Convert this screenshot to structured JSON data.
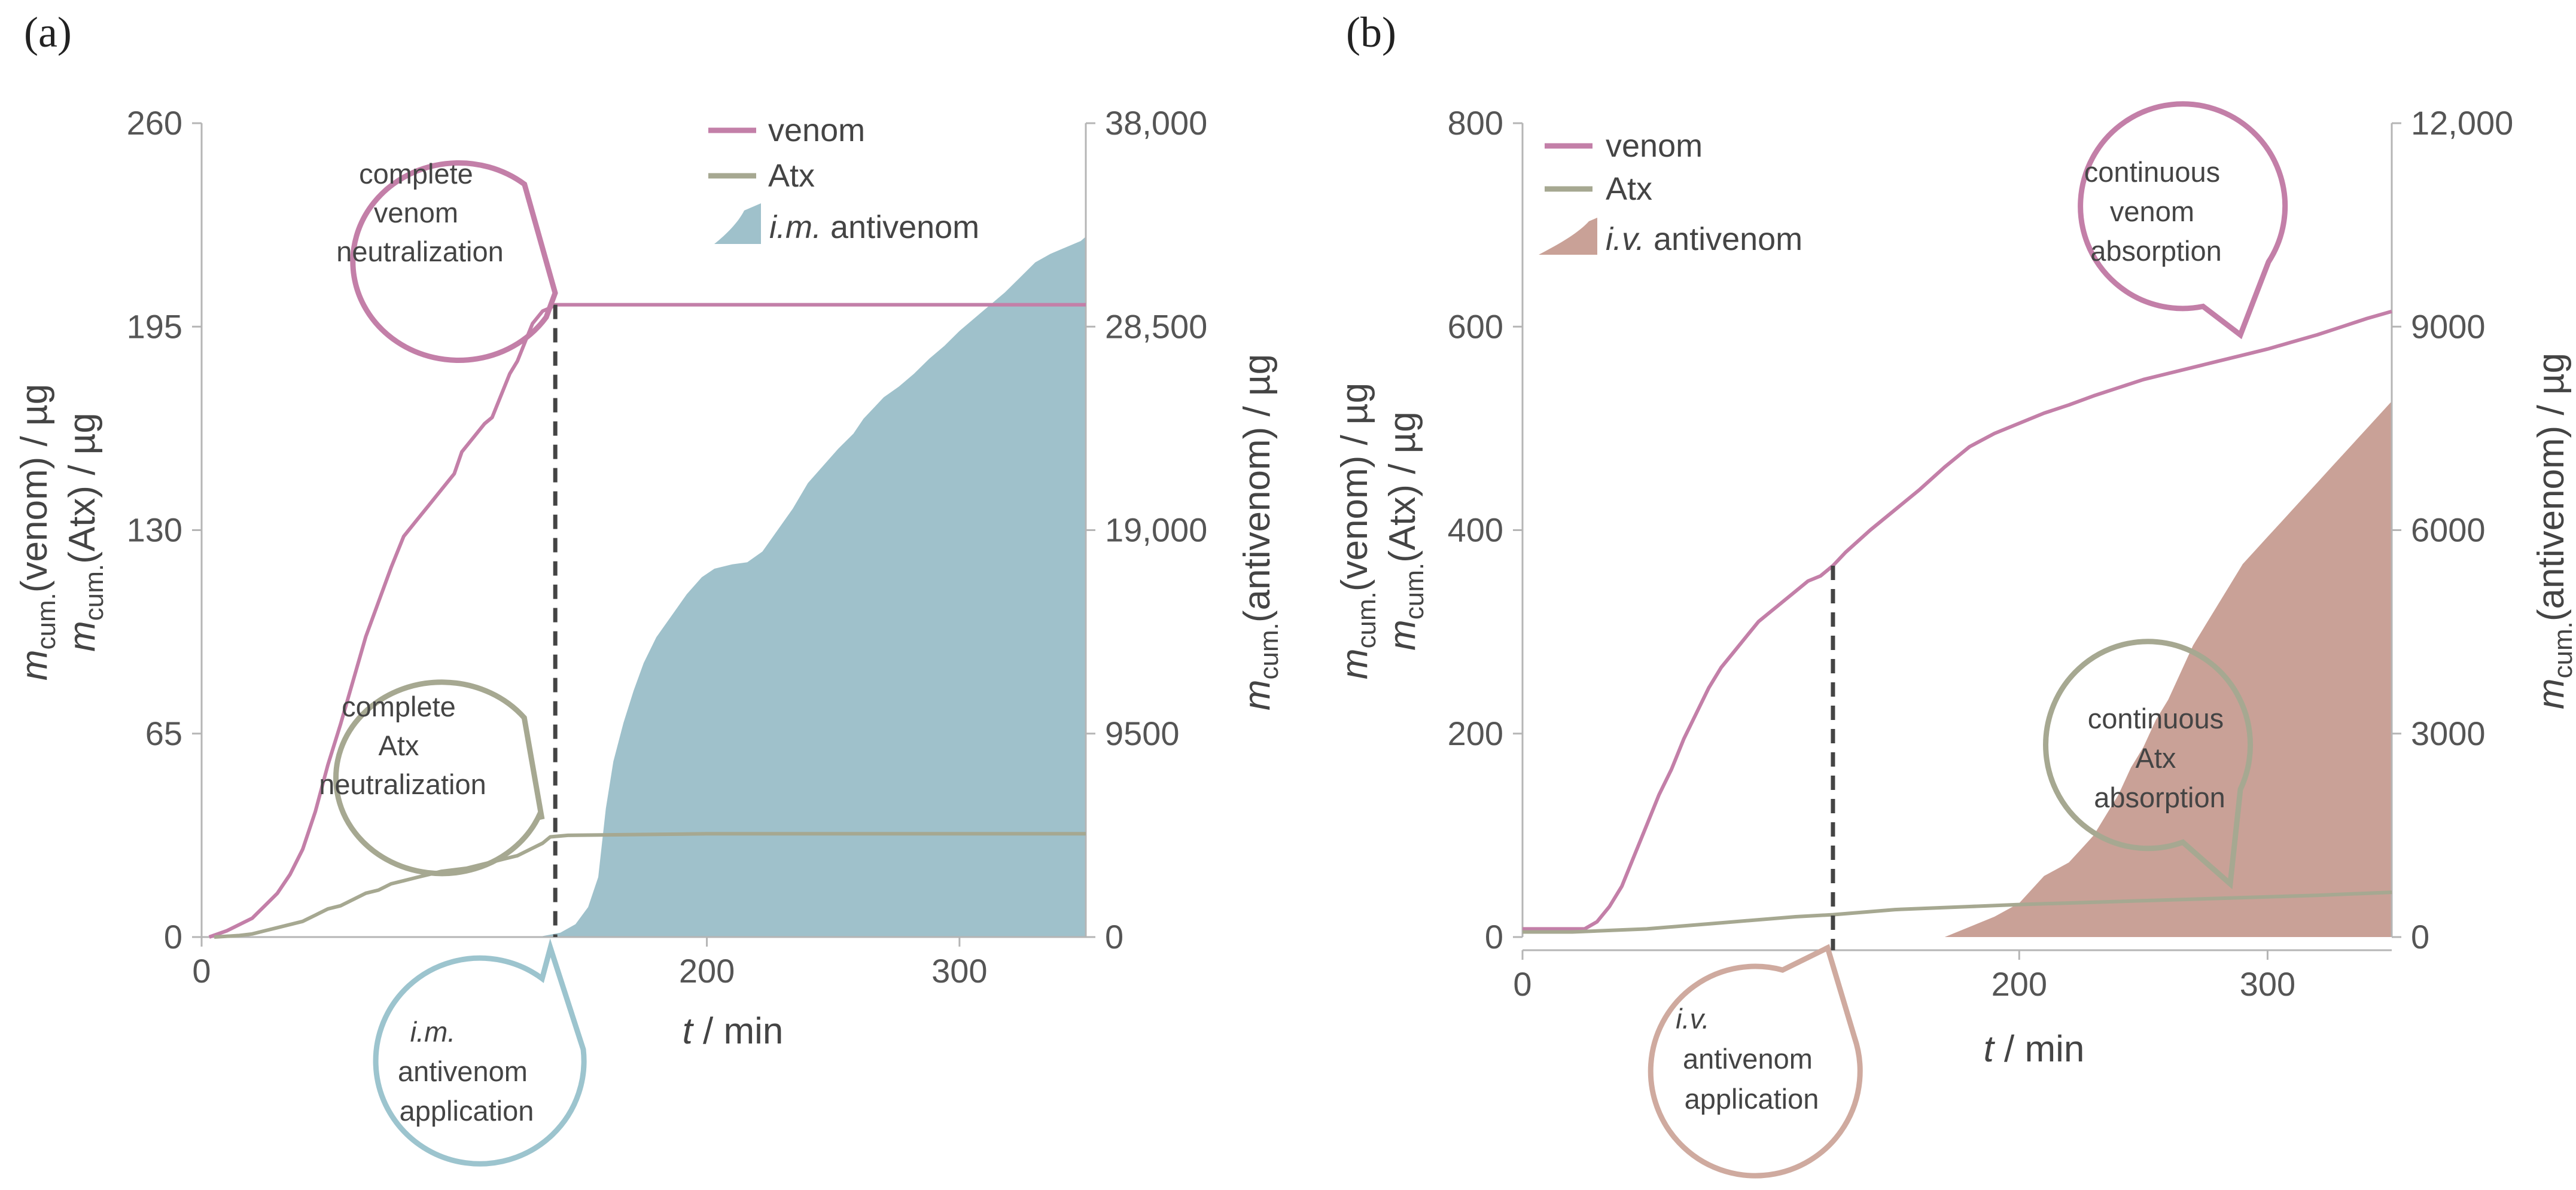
{
  "colors": {
    "venom": "#c37fa8",
    "atx": "#a6a891",
    "im_antivenom": "#9fc1cb",
    "iv_antivenom": "#c9a197",
    "im_callout": "#9cc4ce",
    "iv_callout": "#cfaa9f",
    "axis": "#b5b5b5",
    "dashed": "#444444"
  },
  "chart_data": [
    {
      "panel_label": "(a)",
      "type": "line",
      "xlabel": {
        "italic": "t",
        "rest": " / min"
      },
      "xlim": [
        0,
        350
      ],
      "xticks": [
        {
          "v": 0,
          "label": "0"
        },
        {
          "v": 200,
          "label": "200"
        },
        {
          "v": 300,
          "label": "300"
        }
      ],
      "ylim_left": [
        0,
        260
      ],
      "yticks_left": [
        {
          "v": 0,
          "label": "0"
        },
        {
          "v": 65,
          "label": "65"
        },
        {
          "v": 130,
          "label": "130"
        },
        {
          "v": 195,
          "label": "195"
        },
        {
          "v": 260,
          "label": "260"
        }
      ],
      "ylim_right": [
        0,
        38000
      ],
      "yticks_right": [
        {
          "v": 0,
          "label": "0"
        },
        {
          "v": 9500,
          "label": "9500"
        },
        {
          "v": 19000,
          "label": "19,000"
        },
        {
          "v": 28500,
          "label": "28,500"
        },
        {
          "v": 38000,
          "label": "38,000"
        }
      ],
      "ylabel_left": {
        "line1": {
          "m": "m",
          "sub": "cum.",
          "rest": "(venom) / µg"
        },
        "line2": {
          "m": "m",
          "sub": "cum.",
          "rest": "(Atx) / µg"
        }
      },
      "ylabel_right": {
        "m": "m",
        "sub": "cum.",
        "rest": "(antivenom) / µg"
      },
      "legend": [
        {
          "key": "venom",
          "label": "venom"
        },
        {
          "key": "atx",
          "label": "Atx"
        },
        {
          "key": "antivenom",
          "italic": "i.m.",
          "label": " antivenom"
        }
      ],
      "callouts": [
        {
          "key": "venom",
          "lines": [
            "complete",
            "venom",
            "neutralization"
          ]
        },
        {
          "key": "atx",
          "lines": [
            "complete",
            "Atx",
            "neutralization"
          ]
        },
        {
          "key": "antivenom",
          "lines_italic": [
            "i.m."
          ],
          "lines": [
            "antivenom",
            "application"
          ]
        }
      ],
      "dashed_x": 140,
      "series": [
        {
          "name": "venom",
          "axis": "left",
          "x": [
            3,
            10,
            15,
            20,
            25,
            30,
            35,
            40,
            45,
            50,
            55,
            60,
            65,
            70,
            75,
            80,
            85,
            90,
            95,
            100,
            103,
            108,
            112,
            115,
            118,
            122,
            125,
            128,
            131,
            135,
            138,
            140,
            145,
            200,
            295,
            350
          ],
          "y": [
            0,
            2,
            4,
            6,
            10,
            14,
            20,
            28,
            40,
            55,
            68,
            82,
            96,
            107,
            118,
            128,
            133,
            138,
            143,
            148,
            155,
            160,
            164,
            166,
            172,
            180,
            184,
            190,
            196,
            200,
            201,
            202,
            202,
            202,
            202,
            202
          ]
        },
        {
          "name": "Atx",
          "axis": "left",
          "x": [
            5,
            15,
            20,
            25,
            30,
            35,
            40,
            45,
            50,
            55,
            60,
            65,
            70,
            75,
            80,
            85,
            90,
            95,
            100,
            105,
            110,
            115,
            120,
            125,
            130,
            135,
            138,
            145,
            200,
            350
          ],
          "y": [
            0,
            0.5,
            1,
            2,
            3,
            4,
            5,
            7,
            9,
            10,
            12,
            14,
            15,
            17,
            18,
            19,
            20,
            21,
            21.5,
            22,
            23,
            24,
            25,
            26,
            28,
            30,
            32,
            32.5,
            33,
            33
          ]
        },
        {
          "name": "i.m. antivenom",
          "axis": "right",
          "type": "area",
          "x": [
            133,
            142,
            148,
            153,
            157,
            160,
            163,
            167,
            171,
            175,
            180,
            186,
            192,
            198,
            203,
            210,
            216,
            222,
            228,
            234,
            240,
            246,
            252,
            258,
            262,
            266,
            270,
            276,
            282,
            288,
            294,
            300,
            306,
            312,
            318,
            324,
            330,
            336,
            342,
            348,
            350
          ],
          "y": [
            0,
            200,
            600,
            1400,
            2800,
            6000,
            8200,
            10000,
            11500,
            12800,
            14000,
            15000,
            16000,
            16800,
            17200,
            17400,
            17500,
            18000,
            19000,
            20000,
            21200,
            22000,
            22800,
            23500,
            24200,
            24700,
            25200,
            25700,
            26300,
            27000,
            27600,
            28300,
            28900,
            29500,
            30100,
            30800,
            31500,
            31900,
            32200,
            32500,
            32700
          ]
        }
      ]
    },
    {
      "panel_label": "(b)",
      "type": "line",
      "xlabel": {
        "italic": "t",
        "rest": " / min"
      },
      "xlim": [
        0,
        350
      ],
      "xticks": [
        {
          "v": 0,
          "label": "0"
        },
        {
          "v": 200,
          "label": "200"
        },
        {
          "v": 300,
          "label": "300"
        }
      ],
      "ylim_left": [
        0,
        800
      ],
      "yticks_left": [
        {
          "v": 0,
          "label": "0"
        },
        {
          "v": 200,
          "label": "200"
        },
        {
          "v": 400,
          "label": "400"
        },
        {
          "v": 600,
          "label": "600"
        },
        {
          "v": 800,
          "label": "800"
        }
      ],
      "ylim_right": [
        0,
        12000
      ],
      "yticks_right": [
        {
          "v": 0,
          "label": "0"
        },
        {
          "v": 3000,
          "label": "3000"
        },
        {
          "v": 6000,
          "label": "6000"
        },
        {
          "v": 9000,
          "label": "9000"
        },
        {
          "v": 12000,
          "label": "12,000"
        }
      ],
      "ylabel_left": {
        "line1": {
          "m": "m",
          "sub": "cum.",
          "rest": "(venom) / µg"
        },
        "line2": {
          "m": "m",
          "sub": "cum.",
          "rest": "(Atx) / µg"
        }
      },
      "ylabel_right": {
        "m": "m",
        "sub": "cum.",
        "rest": "(antivenom) / µg"
      },
      "legend": [
        {
          "key": "venom",
          "label": "venom"
        },
        {
          "key": "atx",
          "label": "Atx"
        },
        {
          "key": "antivenom",
          "italic": "i.v.",
          "label": " antivenom"
        }
      ],
      "callouts": [
        {
          "key": "venom",
          "lines": [
            "continuous",
            "venom",
            "absorption"
          ]
        },
        {
          "key": "atx",
          "lines": [
            "continuous",
            "Atx",
            "absorption"
          ]
        },
        {
          "key": "antivenom",
          "lines_italic": [
            "i.v."
          ],
          "lines": [
            "antivenom",
            "application"
          ]
        }
      ],
      "dashed_x": 125,
      "series": [
        {
          "name": "venom",
          "axis": "left",
          "x": [
            0,
            25,
            30,
            35,
            40,
            45,
            50,
            55,
            60,
            65,
            70,
            75,
            80,
            85,
            90,
            95,
            100,
            105,
            110,
            115,
            120,
            125,
            130,
            140,
            150,
            160,
            170,
            180,
            190,
            200,
            210,
            220,
            230,
            240,
            250,
            260,
            270,
            280,
            290,
            300,
            310,
            320,
            330,
            340,
            350
          ],
          "y": [
            8,
            8,
            15,
            30,
            50,
            80,
            110,
            140,
            165,
            195,
            220,
            245,
            265,
            280,
            295,
            310,
            320,
            330,
            340,
            350,
            355,
            365,
            378,
            400,
            420,
            440,
            462,
            482,
            495,
            505,
            515,
            523,
            532,
            540,
            548,
            554,
            560,
            566,
            572,
            578,
            585,
            592,
            600,
            608,
            615
          ]
        },
        {
          "name": "Atx",
          "axis": "left",
          "x": [
            0,
            20,
            50,
            80,
            110,
            125,
            150,
            180,
            200,
            240,
            280,
            320,
            350
          ],
          "y": [
            5,
            5,
            8,
            14,
            20,
            22,
            27,
            30,
            32,
            35,
            38,
            41,
            44
          ]
        },
        {
          "name": "i.v. antivenom",
          "axis": "right",
          "type": "area",
          "x": [
            170,
            180,
            190,
            200,
            205,
            210,
            215,
            220,
            225,
            230,
            235,
            240,
            245,
            250,
            255,
            260,
            265,
            270,
            275,
            280,
            285,
            290,
            295,
            300,
            305,
            310,
            315,
            320,
            325,
            330,
            335,
            340,
            345,
            350
          ],
          "y": [
            0,
            150,
            300,
            500,
            700,
            900,
            1000,
            1100,
            1300,
            1500,
            1800,
            2100,
            2500,
            2800,
            3200,
            3500,
            3900,
            4300,
            4600,
            4900,
            5200,
            5500,
            5700,
            5900,
            6100,
            6300,
            6500,
            6700,
            6900,
            7100,
            7300,
            7500,
            7700,
            7900
          ]
        }
      ]
    }
  ]
}
